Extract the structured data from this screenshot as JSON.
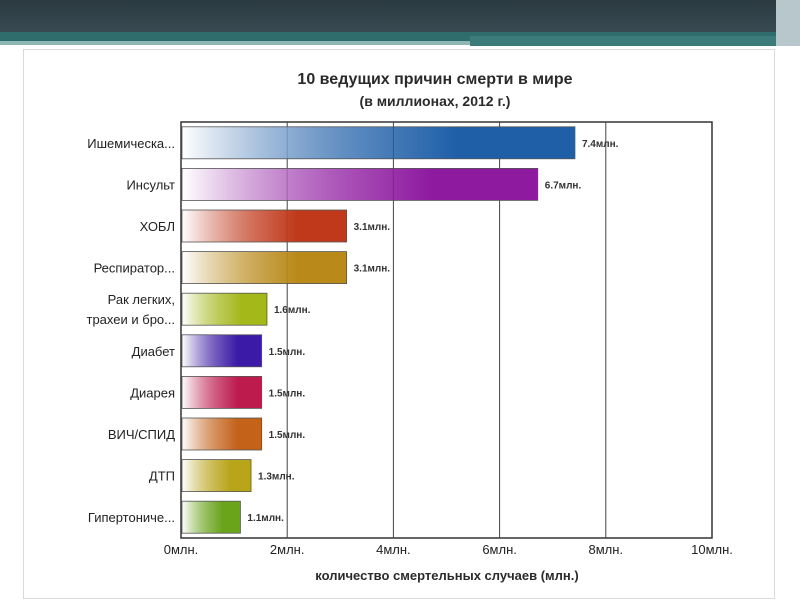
{
  "chart_data": {
    "type": "bar",
    "orientation": "horizontal",
    "title": "10 ведущих причин смерти в мире",
    "subtitle": "(в миллионах, 2012 г.)",
    "xlabel": "количество смертельных случаев (млн.)",
    "ylabel": "",
    "xlim": [
      0,
      10
    ],
    "categories": [
      [
        "Ишемическа..."
      ],
      [
        "Инсульт"
      ],
      [
        "ХОБЛ"
      ],
      [
        "Респиратор..."
      ],
      [
        "Рак легких,",
        "трахеи и бро..."
      ],
      [
        "Диабет"
      ],
      [
        "Диарея"
      ],
      [
        "ВИЧ/СПИД"
      ],
      [
        "ДТП"
      ],
      [
        "Гипертониче..."
      ]
    ],
    "values": [
      7.4,
      6.7,
      3.1,
      3.1,
      1.6,
      1.5,
      1.5,
      1.5,
      1.3,
      1.1
    ],
    "value_labels": [
      "7.4млн.",
      "6.7млн.",
      "3.1млн.",
      "3.1млн.",
      "1.6млн.",
      "1.5млн.",
      "1.5млн.",
      "1.5млн.",
      "1.3млн.",
      "1.1млн."
    ],
    "colors": [
      "#1f5fa8",
      "#8e1aa0",
      "#c0391b",
      "#b98a1a",
      "#a4b81a",
      "#3a1aa6",
      "#bd1a4e",
      "#c4621a",
      "#b9a51a",
      "#6aa41a"
    ],
    "xticks": [
      0,
      2,
      4,
      6,
      8,
      10
    ],
    "xtick_labels": [
      "0млн.",
      "2млн.",
      "4млн.",
      "6млн.",
      "8млн.",
      "10млн."
    ],
    "grid": "vertical",
    "legend": "none"
  }
}
